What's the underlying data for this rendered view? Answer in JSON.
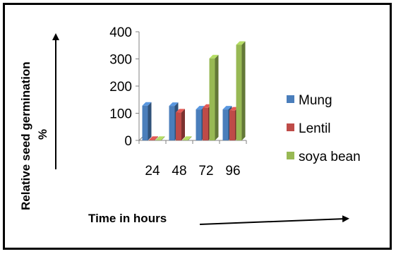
{
  "chart_data": {
    "type": "bar",
    "style": "3d-clustered-column",
    "title": "",
    "categories": [
      "24",
      "48",
      "72",
      "96"
    ],
    "series": [
      {
        "name": "Mung",
        "values": [
          128,
          127,
          114,
          114
        ],
        "color": "#4a7ebb"
      },
      {
        "name": "Lentil",
        "values": [
          2,
          103,
          120,
          110
        ],
        "color": "#be4b48"
      },
      {
        "name": "soya bean",
        "values": [
          2,
          2,
          302,
          352
        ],
        "color": "#98b954"
      }
    ],
    "yticks": [
      "0",
      "100",
      "200",
      "300",
      "400"
    ],
    "ylim": [
      0,
      400
    ],
    "ylabel_line1": "Relative seed germination",
    "ylabel_line2": "%",
    "xlabel": "Time in hours",
    "legend": "right",
    "grid": false
  }
}
